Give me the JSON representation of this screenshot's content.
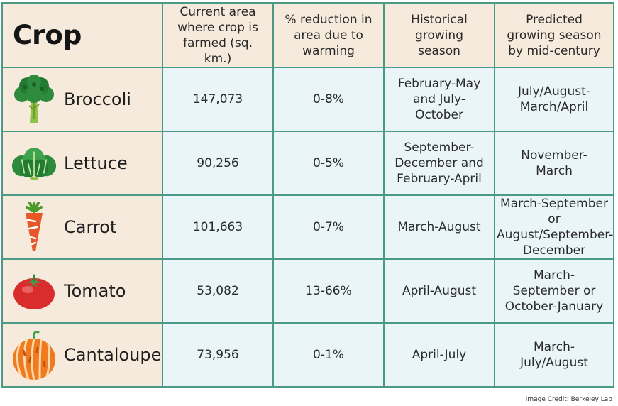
{
  "headers": {
    "crop": "Crop",
    "area": "Current area where crop is farmed (sq. km.)",
    "reduction": "% reduction in area due to warming",
    "historical": "Historical growing season",
    "predicted": "Predicted growing season by mid-century"
  },
  "rows": [
    {
      "crop": "Broccoli",
      "icon": "broccoli-icon",
      "area": "147,073",
      "reduction": "0-8%",
      "historical": "February-May and July-October",
      "predicted": "July/August-March/April"
    },
    {
      "crop": "Lettuce",
      "icon": "lettuce-icon",
      "area": "90,256",
      "reduction": "0-5%",
      "historical": "September-December and February-April",
      "predicted": "November-March"
    },
    {
      "crop": "Carrot",
      "icon": "carrot-icon",
      "area": "101,663",
      "reduction": "0-7%",
      "historical": "March-August",
      "predicted": "March-September or August/September-December"
    },
    {
      "crop": "Tomato",
      "icon": "tomato-icon",
      "area": "53,082",
      "reduction": "13-66%",
      "historical": "April-August",
      "predicted": "March-September or October-January"
    },
    {
      "crop": "Cantaloupe",
      "icon": "cantaloupe-icon",
      "area": "73,956",
      "reduction": "0-1%",
      "historical": "April-July",
      "predicted": "March-July/August"
    }
  ],
  "credit": "Image Credit: Berkeley Lab",
  "colors": {
    "border": "#4a9a86",
    "crop_column_bg": "#f5eadb",
    "data_cell_bg": "#eaf5fa",
    "broccoli_green": "#2e8b3e",
    "carrot_orange": "#e8572a",
    "tomato_red": "#d92d2d",
    "cantaloupe_orange": "#f07a1f"
  }
}
